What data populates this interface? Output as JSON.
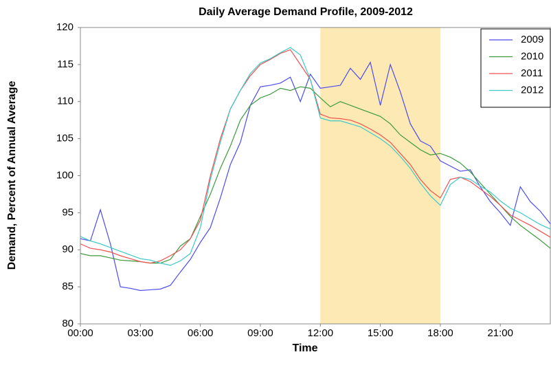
{
  "chart_data": {
    "type": "line",
    "title": "Daily Average Demand Profile, 2009-2012",
    "x_label": "Time",
    "y_label": "Demand, Percent of Annual Average",
    "x": [
      0,
      0.5,
      1,
      1.5,
      2,
      2.5,
      3,
      3.5,
      4,
      4.5,
      5,
      5.5,
      6,
      6.5,
      7,
      7.5,
      8,
      8.5,
      9,
      9.5,
      10,
      10.5,
      11,
      11.5,
      12,
      12.5,
      13,
      13.5,
      14,
      14.5,
      15,
      15.5,
      16,
      16.5,
      17,
      17.5,
      18,
      18.5,
      19,
      19.5,
      20,
      20.5,
      21,
      21.5,
      22,
      22.5,
      23,
      23.5
    ],
    "series": [
      {
        "name": "2009",
        "color": "#4b4bf0",
        "values": [
          91.5,
          91.2,
          95.4,
          90.8,
          85.0,
          84.8,
          84.5,
          84.6,
          84.7,
          85.2,
          87,
          88.7,
          91,
          93,
          97,
          101.5,
          104.5,
          109.5,
          112,
          112.2,
          112.5,
          113.3,
          110,
          113.7,
          111.8,
          112,
          112.2,
          114.5,
          113,
          115.3,
          109.5,
          115,
          111.3,
          107,
          104.7,
          104,
          102,
          101.3,
          100.6,
          100.8,
          98.5,
          96.5,
          95,
          93.3,
          98.5,
          96.5,
          95.2,
          93.5
        ]
      },
      {
        "name": "2010",
        "color": "#3c9a3c",
        "values": [
          89.5,
          89.2,
          89.2,
          88.9,
          88.6,
          88.5,
          88.4,
          88.2,
          88.2,
          88.7,
          90.5,
          91.5,
          94.5,
          97.5,
          101,
          104,
          107.5,
          109.5,
          110.5,
          111,
          111.8,
          111.5,
          112,
          111.8,
          110.5,
          109.3,
          110,
          109.5,
          109,
          108.5,
          108,
          107,
          105.5,
          104.5,
          103.5,
          102.8,
          103,
          102.5,
          101.7,
          100.5,
          99,
          97.5,
          96,
          94.5,
          93.3,
          92.3,
          91.3,
          90.2
        ]
      },
      {
        "name": "2011",
        "color": "#f05050",
        "values": [
          90.8,
          90.2,
          90,
          89.7,
          89.2,
          88.8,
          88.4,
          88.2,
          88.5,
          89.2,
          90,
          91.5,
          94,
          100,
          105,
          109,
          111.5,
          113.5,
          115,
          115.7,
          116.5,
          117,
          115,
          113,
          108.3,
          107.8,
          107.7,
          107.5,
          107,
          106.3,
          105.5,
          104.5,
          103,
          101.5,
          99.5,
          98,
          97,
          99.5,
          99.8,
          99.2,
          98.2,
          97.2,
          96,
          94.7,
          94,
          93.3,
          92.5,
          91.7
        ]
      },
      {
        "name": "2012",
        "color": "#3cc8c8",
        "values": [
          91.8,
          91.2,
          90.8,
          90.3,
          89.8,
          89.3,
          88.8,
          88.6,
          88.2,
          87.9,
          88.5,
          89.5,
          93,
          99.5,
          104.5,
          109,
          111.5,
          113.8,
          115.2,
          115.8,
          116.6,
          117.3,
          116.3,
          113,
          107.8,
          107.4,
          107.4,
          107,
          106.6,
          105.8,
          105,
          104,
          102.6,
          101,
          99,
          97.3,
          96,
          98.8,
          99.8,
          99.5,
          98.6,
          97.8,
          96.6,
          95.6,
          95,
          94.2,
          93.4,
          92.8
        ]
      }
    ],
    "xlim": [
      0,
      23.5
    ],
    "xticks": [
      {
        "value": 0,
        "label": "00:00"
      },
      {
        "value": 3,
        "label": "03:00"
      },
      {
        "value": 6,
        "label": "06:00"
      },
      {
        "value": 9,
        "label": "09:00"
      },
      {
        "value": 12,
        "label": "12:00"
      },
      {
        "value": 15,
        "label": "15:00"
      },
      {
        "value": 18,
        "label": "18:00"
      },
      {
        "value": 21,
        "label": "21:00"
      }
    ],
    "ylim": [
      80,
      120
    ],
    "yticks": [
      80,
      85,
      90,
      95,
      100,
      105,
      110,
      115,
      120
    ],
    "shaded_x": [
      12,
      18
    ],
    "shade_color": "#fde9b3",
    "legend": "upper right",
    "grid": false
  }
}
